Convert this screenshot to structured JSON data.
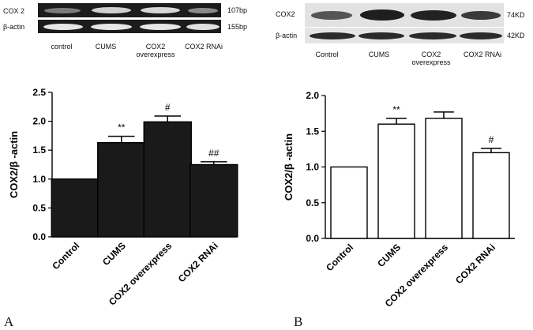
{
  "panels": [
    {
      "letter": "A",
      "blot": {
        "rows": [
          {
            "label": "COX 2",
            "size": "107bp"
          },
          {
            "label": "β-actin",
            "size": "155bp"
          }
        ],
        "lanes": [
          "control",
          "CUMS",
          "COX2\noverexpress",
          "COX2 RNAi"
        ]
      }
    },
    {
      "letter": "B",
      "blot": {
        "rows": [
          {
            "label": "COX2",
            "size": "74KD"
          },
          {
            "label": "β-actin",
            "size": "42KD"
          }
        ],
        "lanes": [
          "Control",
          "CUMS",
          "COX2\noverexpress",
          "COX2 RNAi"
        ]
      }
    }
  ],
  "chart_data": [
    {
      "type": "bar",
      "categories": [
        "Control",
        "CUMS",
        "COX2 overexpress",
        "COX2 RNAi"
      ],
      "values": [
        1.0,
        1.63,
        1.99,
        1.25
      ],
      "errors": [
        0.0,
        0.11,
        0.1,
        0.05
      ],
      "annotations": [
        "",
        "**",
        "#",
        "##"
      ],
      "ylabel": "COX2/β -actin",
      "ylim": [
        0,
        2.5
      ],
      "yticks": [
        "0.0",
        "0.5",
        "1.0",
        "1.5",
        "2.0",
        "2.5"
      ],
      "bar_color": "#1a1a1a"
    },
    {
      "type": "bar",
      "categories": [
        "Control",
        "CUMS",
        "COX2 overexpress",
        "COX2 RNAi"
      ],
      "values": [
        1.0,
        1.6,
        1.68,
        1.2
      ],
      "errors": [
        0.0,
        0.08,
        0.09,
        0.06
      ],
      "annotations": [
        "",
        "**",
        "",
        "#"
      ],
      "ylabel": "COX2/β -actin",
      "ylim": [
        0,
        2.0
      ],
      "yticks": [
        "0.0",
        "0.5",
        "1.0",
        "1.5",
        "2.0"
      ],
      "bar_color": "#ffffff"
    }
  ]
}
